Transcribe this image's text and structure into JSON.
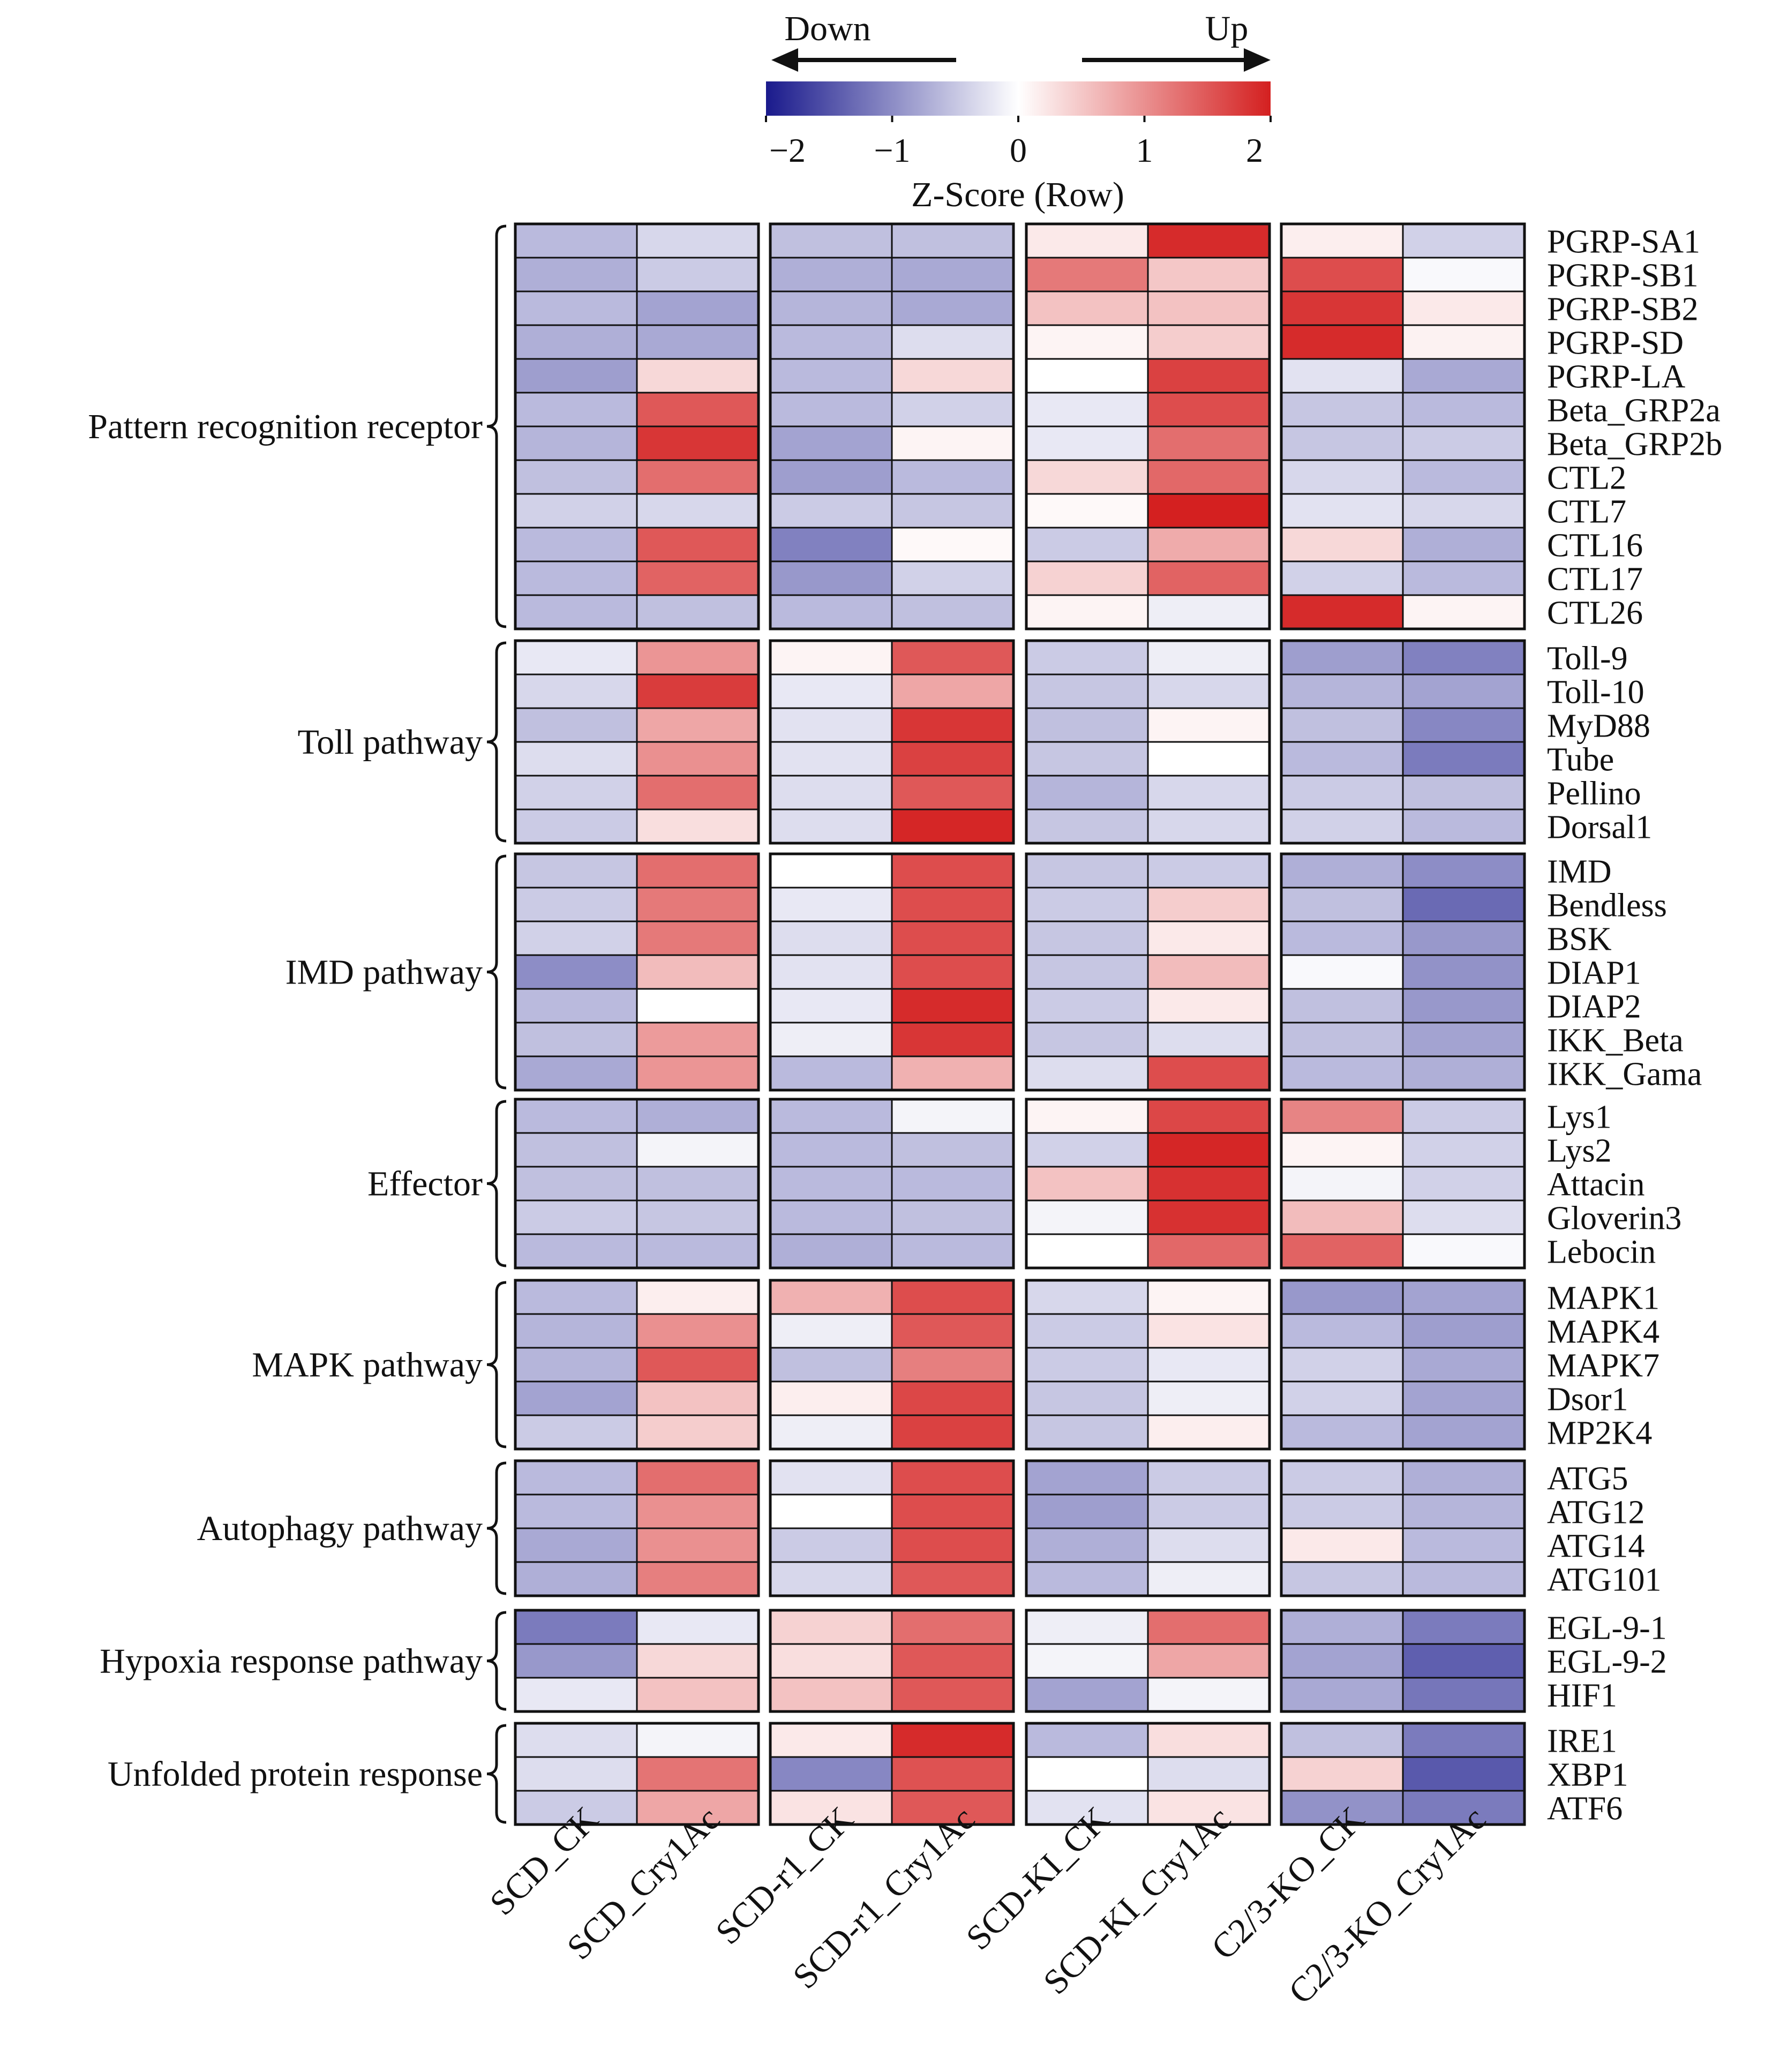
{
  "chart_data": {
    "type": "heatmap",
    "legend": {
      "title": "Z-Score (Row)",
      "ticks": [
        -2,
        -1,
        0,
        1,
        2
      ],
      "tick_labels": [
        "−2",
        "−1",
        "0",
        "1",
        "2"
      ],
      "range": [
        -2,
        2
      ],
      "down_label": "Down",
      "up_label": "Up",
      "low_color": "#1a1a8c",
      "mid_color": "#ffffff",
      "high_color": "#d42020"
    },
    "sample_groups": [
      [
        "SCD_CK",
        "SCD_Cry1Ac"
      ],
      [
        "SCD-r1_CK",
        "SCD-r1_Cry1Ac"
      ],
      [
        "SCD-KI_CK",
        "SCD-KI_Cry1Ac"
      ],
      [
        "C2/3-KO_CK",
        "C2/3-KO_Cry1Ac"
      ]
    ],
    "columns": [
      "SCD_CK",
      "SCD_Cry1Ac",
      "SCD-r1_CK",
      "SCD-r1_Cry1Ac",
      "SCD-KI_CK",
      "SCD-KI_Cry1Ac",
      "C2/3-KO_CK",
      "C2/3-KO_Cry1Ac"
    ],
    "row_groups": [
      {
        "name": "Pattern recognition receptor",
        "rows": [
          {
            "gene": "PGRP-SA1",
            "values": [
              -0.6,
              -0.35,
              -0.55,
              -0.55,
              0.2,
              1.9,
              0.15,
              -0.4
            ]
          },
          {
            "gene": "PGRP-SB1",
            "values": [
              -0.7,
              -0.45,
              -0.7,
              -0.75,
              1.2,
              0.5,
              1.6,
              -0.05
            ]
          },
          {
            "gene": "PGRP-SB2",
            "values": [
              -0.6,
              -0.8,
              -0.65,
              -0.75,
              0.55,
              0.55,
              1.8,
              0.2
            ]
          },
          {
            "gene": "PGRP-SD",
            "values": [
              -0.7,
              -0.75,
              -0.6,
              -0.3,
              0.1,
              0.45,
              1.9,
              0.12
            ]
          },
          {
            "gene": "PGRP-LA",
            "values": [
              -0.85,
              0.35,
              -0.6,
              0.35,
              0.0,
              1.7,
              -0.25,
              -0.75
            ]
          },
          {
            "gene": "Beta_GRP2a",
            "values": [
              -0.6,
              1.5,
              -0.6,
              -0.4,
              -0.2,
              1.6,
              -0.5,
              -0.6
            ]
          },
          {
            "gene": "Beta_GRP2b",
            "values": [
              -0.65,
              1.8,
              -0.8,
              0.1,
              -0.2,
              1.3,
              -0.5,
              -0.45
            ]
          },
          {
            "gene": "CTL2",
            "values": [
              -0.55,
              1.3,
              -0.85,
              -0.6,
              0.35,
              1.35,
              -0.35,
              -0.6
            ]
          },
          {
            "gene": "CTL7",
            "values": [
              -0.4,
              -0.35,
              -0.45,
              -0.5,
              0.05,
              2.0,
              -0.25,
              -0.35
            ]
          },
          {
            "gene": "CTL16",
            "values": [
              -0.6,
              1.5,
              -1.1,
              0.05,
              -0.45,
              0.75,
              0.35,
              -0.7
            ]
          },
          {
            "gene": "CTL17",
            "values": [
              -0.6,
              1.4,
              -0.9,
              -0.4,
              0.4,
              1.4,
              -0.4,
              -0.6
            ]
          },
          {
            "gene": "CTL26",
            "values": [
              -0.6,
              -0.55,
              -0.6,
              -0.55,
              0.1,
              -0.15,
              1.9,
              0.1
            ]
          }
        ]
      },
      {
        "name": "Toll pathway",
        "rows": [
          {
            "gene": "Toll-9",
            "values": [
              -0.2,
              0.95,
              0.1,
              1.5,
              -0.45,
              -0.15,
              -0.85,
              -1.1
            ]
          },
          {
            "gene": "Toll-10",
            "values": [
              -0.35,
              1.75,
              -0.2,
              0.8,
              -0.5,
              -0.35,
              -0.65,
              -0.8
            ]
          },
          {
            "gene": "MyD88",
            "values": [
              -0.55,
              0.8,
              -0.25,
              1.8,
              -0.55,
              0.1,
              -0.55,
              -1.05
            ]
          },
          {
            "gene": "Tube",
            "values": [
              -0.3,
              1.0,
              -0.25,
              1.7,
              -0.5,
              0.0,
              -0.6,
              -1.15
            ]
          },
          {
            "gene": "Pellino",
            "values": [
              -0.4,
              1.3,
              -0.3,
              1.5,
              -0.65,
              -0.35,
              -0.45,
              -0.55
            ]
          },
          {
            "gene": "Dorsal1",
            "values": [
              -0.45,
              0.3,
              -0.3,
              1.95,
              -0.5,
              -0.35,
              -0.4,
              -0.6
            ]
          }
        ]
      },
      {
        "name": "IMD pathway",
        "rows": [
          {
            "gene": "IMD",
            "values": [
              -0.5,
              1.3,
              0.0,
              1.6,
              -0.5,
              -0.45,
              -0.7,
              -1.0
            ]
          },
          {
            "gene": "Bendless",
            "values": [
              -0.45,
              1.2,
              -0.2,
              1.6,
              -0.45,
              0.45,
              -0.55,
              -1.3
            ]
          },
          {
            "gene": "BSK",
            "values": [
              -0.4,
              1.2,
              -0.3,
              1.6,
              -0.5,
              0.2,
              -0.6,
              -0.9
            ]
          },
          {
            "gene": "DIAP1",
            "values": [
              -1.0,
              0.6,
              -0.25,
              1.6,
              -0.5,
              0.6,
              -0.05,
              -0.95
            ]
          },
          {
            "gene": "DIAP2",
            "values": [
              -0.6,
              0.0,
              -0.2,
              1.9,
              -0.45,
              0.2,
              -0.55,
              -0.9
            ]
          },
          {
            "gene": "IKK_Beta",
            "values": [
              -0.55,
              0.9,
              -0.15,
              1.8,
              -0.5,
              -0.3,
              -0.55,
              -0.8
            ]
          },
          {
            "gene": "IKK_Gama",
            "values": [
              -0.75,
              0.95,
              -0.6,
              0.7,
              -0.3,
              1.6,
              -0.6,
              -0.7
            ]
          }
        ]
      },
      {
        "name": "Effector",
        "rows": [
          {
            "gene": "Lys1",
            "values": [
              -0.6,
              -0.7,
              -0.6,
              -0.1,
              0.1,
              1.65,
              1.1,
              -0.45
            ]
          },
          {
            "gene": "Lys2",
            "values": [
              -0.55,
              -0.1,
              -0.6,
              -0.55,
              -0.4,
              1.95,
              0.1,
              -0.4
            ]
          },
          {
            "gene": "Attacin",
            "values": [
              -0.55,
              -0.55,
              -0.6,
              -0.6,
              0.55,
              1.85,
              -0.1,
              -0.4
            ]
          },
          {
            "gene": "Gloverin3",
            "values": [
              -0.45,
              -0.5,
              -0.6,
              -0.55,
              -0.1,
              1.85,
              0.6,
              -0.3
            ]
          },
          {
            "gene": "Lebocin",
            "values": [
              -0.6,
              -0.6,
              -0.7,
              -0.6,
              0.0,
              1.35,
              1.4,
              -0.05
            ]
          }
        ]
      },
      {
        "name": "MAPK pathway",
        "rows": [
          {
            "gene": "MAPK1",
            "values": [
              -0.6,
              0.15,
              0.7,
              1.6,
              -0.35,
              0.1,
              -0.9,
              -0.8
            ]
          },
          {
            "gene": "MAPK4",
            "values": [
              -0.65,
              1.0,
              -0.15,
              1.5,
              -0.45,
              0.25,
              -0.6,
              -0.85
            ]
          },
          {
            "gene": "MAPK7",
            "values": [
              -0.65,
              1.5,
              -0.55,
              1.15,
              -0.45,
              -0.2,
              -0.4,
              -0.75
            ]
          },
          {
            "gene": "Dsor1",
            "values": [
              -0.8,
              0.55,
              0.15,
              1.65,
              -0.5,
              -0.15,
              -0.4,
              -0.8
            ]
          },
          {
            "gene": "MP2K4",
            "values": [
              -0.45,
              0.45,
              -0.15,
              1.7,
              -0.5,
              0.15,
              -0.6,
              -0.8
            ]
          }
        ]
      },
      {
        "name": "Autophagy pathway",
        "rows": [
          {
            "gene": "ATG5",
            "values": [
              -0.6,
              1.3,
              -0.25,
              1.6,
              -0.8,
              -0.45,
              -0.45,
              -0.7
            ]
          },
          {
            "gene": "ATG12",
            "values": [
              -0.6,
              1.0,
              0.0,
              1.6,
              -0.85,
              -0.45,
              -0.45,
              -0.65
            ]
          },
          {
            "gene": "ATG14",
            "values": [
              -0.75,
              1.0,
              -0.45,
              1.6,
              -0.7,
              -0.3,
              0.2,
              -0.6
            ]
          },
          {
            "gene": "ATG101",
            "values": [
              -0.7,
              1.15,
              -0.35,
              1.5,
              -0.6,
              -0.15,
              -0.5,
              -0.6
            ]
          }
        ]
      },
      {
        "name": "Hypoxia response pathway",
        "rows": [
          {
            "gene": "EGL-9-1",
            "values": [
              -1.15,
              -0.2,
              0.4,
              1.3,
              -0.15,
              1.3,
              -0.7,
              -1.15
            ]
          },
          {
            "gene": "EGL-9-2",
            "values": [
              -0.9,
              0.35,
              0.3,
              1.5,
              -0.1,
              0.8,
              -0.8,
              -1.4
            ]
          },
          {
            "gene": "HIF1",
            "values": [
              -0.2,
              0.55,
              0.55,
              1.5,
              -0.8,
              -0.1,
              -0.75,
              -1.2
            ]
          }
        ]
      },
      {
        "name": "Unfolded protein response",
        "rows": [
          {
            "gene": "IRE1",
            "values": [
              -0.3,
              -0.1,
              0.2,
              1.9,
              -0.6,
              0.3,
              -0.55,
              -1.15
            ]
          },
          {
            "gene": "XBP1",
            "values": [
              -0.3,
              1.25,
              -1.05,
              1.55,
              0.0,
              -0.3,
              0.4,
              -1.45
            ]
          },
          {
            "gene": "ATF6",
            "values": [
              -0.45,
              0.8,
              0.25,
              1.5,
              -0.25,
              0.25,
              -0.95,
              -1.15
            ]
          }
        ]
      }
    ]
  }
}
